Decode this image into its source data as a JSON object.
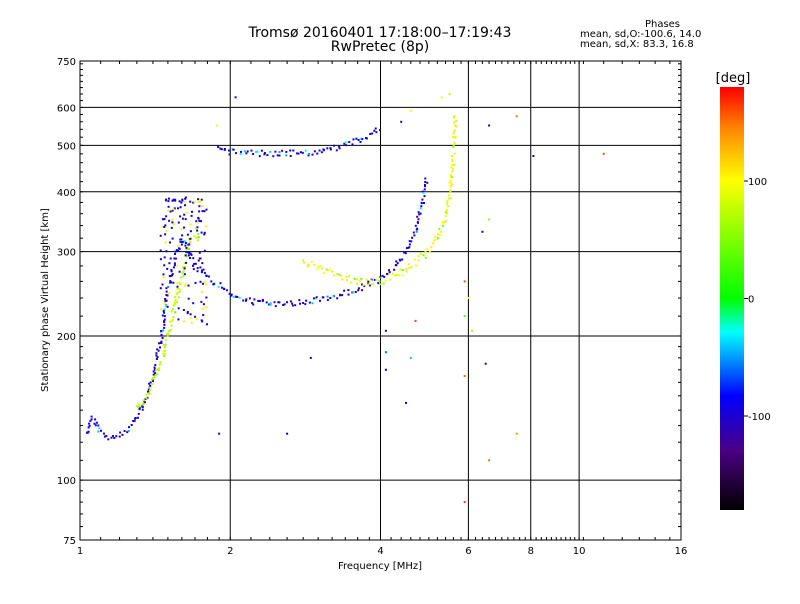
{
  "chart_data": {
    "type": "scatter",
    "title": "Tromsø 20160401 17:18:00–17:19:43",
    "subtitle": "RwPretec (8p)",
    "xlabel": "Frequency [MHz]",
    "ylabel": "Stationary phase Virtual Height [km]",
    "x_scale": "log",
    "y_scale": "log",
    "xlim": [
      1,
      16
    ],
    "ylim": [
      75,
      750
    ],
    "x_ticks": [
      1,
      2,
      4,
      6,
      8,
      10,
      16
    ],
    "x_tick_labels": [
      "1",
      "2",
      "4",
      "6",
      "8",
      "10",
      "16"
    ],
    "y_ticks": [
      75,
      100,
      200,
      300,
      400,
      500,
      600,
      750
    ],
    "y_tick_labels": [
      "75",
      "100",
      "200",
      "300",
      "400",
      "500",
      "600",
      "750"
    ],
    "grid": true,
    "colorbar": {
      "label": "[deg]",
      "range": [
        -180,
        180
      ],
      "ticks": [
        100,
        0,
        -100
      ],
      "tick_labels": [
        "100",
        "0",
        "-100"
      ]
    },
    "phases": {
      "header": "Phases",
      "o_line": "mean, sd,O:-100.6, 14.0",
      "x_line": "mean, sd,X:  83.3, 16.8"
    },
    "traces": [
      {
        "phase": -100,
        "points": [
          [
            1.03,
            125
          ],
          [
            1.06,
            135
          ],
          [
            1.09,
            128
          ],
          [
            1.12,
            124
          ],
          [
            1.15,
            123
          ],
          [
            1.2,
            124
          ],
          [
            1.25,
            128
          ],
          [
            1.3,
            135
          ],
          [
            1.35,
            145
          ],
          [
            1.4,
            165
          ],
          [
            1.45,
            195
          ],
          [
            1.5,
            250
          ],
          [
            1.55,
            290
          ],
          [
            1.6,
            320
          ],
          [
            1.65,
            300
          ],
          [
            1.7,
            280
          ],
          [
            1.8,
            265
          ],
          [
            1.9,
            255
          ],
          [
            2.0,
            245
          ],
          [
            2.2,
            236
          ],
          [
            2.5,
            233
          ],
          [
            2.8,
            235
          ],
          [
            3.0,
            238
          ],
          [
            3.3,
            243
          ],
          [
            3.6,
            250
          ],
          [
            3.9,
            260
          ],
          [
            4.1,
            268
          ],
          [
            4.3,
            280
          ],
          [
            4.5,
            300
          ],
          [
            4.7,
            330
          ],
          [
            4.85,
            380
          ],
          [
            4.95,
            430
          ]
        ]
      },
      {
        "phase": -95,
        "points": [
          [
            1.88,
            490
          ],
          [
            2.0,
            485
          ],
          [
            2.2,
            482
          ],
          [
            2.5,
            480
          ],
          [
            2.8,
            482
          ],
          [
            3.0,
            486
          ],
          [
            3.2,
            492
          ],
          [
            3.5,
            505
          ],
          [
            3.8,
            525
          ],
          [
            4.0,
            545
          ]
        ]
      },
      {
        "phase": 95,
        "points": [
          [
            2.8,
            285
          ],
          [
            3.0,
            278
          ],
          [
            3.2,
            270
          ],
          [
            3.4,
            264
          ],
          [
            3.6,
            260
          ],
          [
            3.8,
            258
          ],
          [
            4.0,
            260
          ],
          [
            4.3,
            268
          ],
          [
            4.6,
            280
          ],
          [
            4.9,
            295
          ],
          [
            5.1,
            312
          ],
          [
            5.3,
            335
          ],
          [
            5.45,
            370
          ],
          [
            5.55,
            420
          ],
          [
            5.6,
            480
          ],
          [
            5.63,
            530
          ],
          [
            5.65,
            590
          ]
        ]
      },
      {
        "phase": 75,
        "points": [
          [
            1.3,
            140
          ],
          [
            1.38,
            155
          ],
          [
            1.45,
            175
          ],
          [
            1.55,
            230
          ],
          [
            1.65,
            310
          ],
          [
            1.75,
            330
          ]
        ]
      }
    ],
    "scattered_points": [
      {
        "x": 2.05,
        "y": 630,
        "phase": -80
      },
      {
        "x": 1.88,
        "y": 550,
        "phase": 95
      },
      {
        "x": 1.9,
        "y": 125,
        "phase": -100
      },
      {
        "x": 2.6,
        "y": 125,
        "phase": -90
      },
      {
        "x": 2.9,
        "y": 180,
        "phase": -100
      },
      {
        "x": 4.1,
        "y": 185,
        "phase": -60
      },
      {
        "x": 4.6,
        "y": 180,
        "phase": -40
      },
      {
        "x": 4.5,
        "y": 145,
        "phase": -90
      },
      {
        "x": 4.1,
        "y": 170,
        "phase": -100
      },
      {
        "x": 4.1,
        "y": 205,
        "phase": -100
      },
      {
        "x": 4.7,
        "y": 215,
        "phase": 165
      },
      {
        "x": 5.9,
        "y": 260,
        "phase": 160
      },
      {
        "x": 5.9,
        "y": 220,
        "phase": 30
      },
      {
        "x": 5.9,
        "y": 165,
        "phase": 150
      },
      {
        "x": 5.9,
        "y": 90,
        "phase": 165
      },
      {
        "x": 6.5,
        "y": 175,
        "phase": -100
      },
      {
        "x": 6.6,
        "y": 110,
        "phase": 150
      },
      {
        "x": 7.5,
        "y": 125,
        "phase": 140
      },
      {
        "x": 7.5,
        "y": 575,
        "phase": 150
      },
      {
        "x": 6.6,
        "y": 550,
        "phase": -100
      },
      {
        "x": 8.1,
        "y": 475,
        "phase": -100
      },
      {
        "x": 11.2,
        "y": 480,
        "phase": 160
      },
      {
        "x": 6.4,
        "y": 330,
        "phase": -100
      },
      {
        "x": 6.6,
        "y": 350,
        "phase": 60
      },
      {
        "x": 5.5,
        "y": 640,
        "phase": 75
      },
      {
        "x": 5.3,
        "y": 630,
        "phase": 95
      },
      {
        "x": 4.6,
        "y": 590,
        "phase": 95
      },
      {
        "x": 4.4,
        "y": 560,
        "phase": -100
      },
      {
        "x": 6.0,
        "y": 240,
        "phase": 100
      },
      {
        "x": 6.1,
        "y": 205,
        "phase": 70
      }
    ]
  }
}
